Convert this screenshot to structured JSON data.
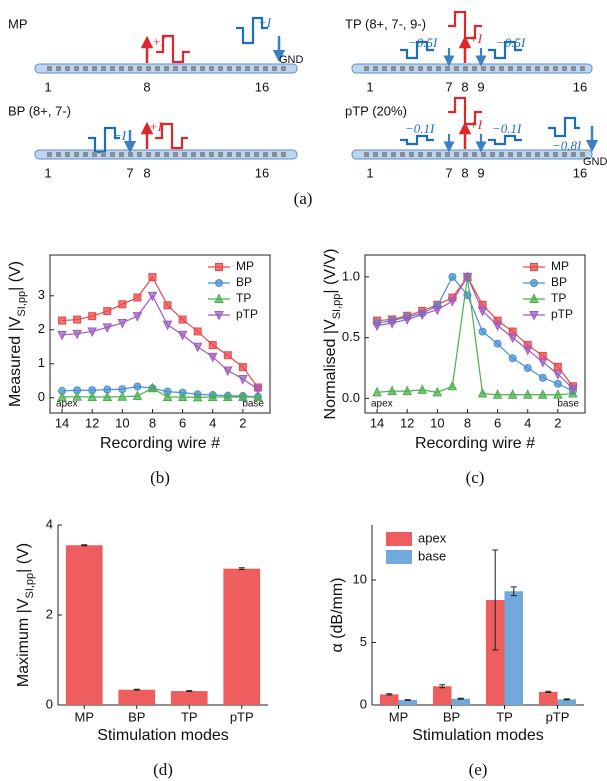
{
  "diagram": {
    "caption": "(a)",
    "panels": [
      {
        "title": "MP",
        "electrodes": [
          "1",
          "8",
          "16"
        ],
        "currents": [
          "+I",
          "−I"
        ],
        "ground": "GND"
      },
      {
        "title": "TP (8+, 7-, 9-)",
        "electrodes": [
          "1",
          "7",
          "8",
          "9",
          "16"
        ],
        "currents": [
          "−0.5I",
          "+I",
          "−0.5I"
        ]
      },
      {
        "title": "BP (8+, 7-)",
        "electrodes": [
          "1",
          "7",
          "8",
          "16"
        ],
        "currents": [
          "−I",
          "+I"
        ]
      },
      {
        "title": "pTP (20%)",
        "electrodes": [
          "1",
          "7",
          "8",
          "9",
          "16"
        ],
        "currents": [
          "−0.1I",
          "+I",
          "−0.1I",
          "−0.8I"
        ],
        "ground": "GND"
      }
    ]
  },
  "chart_data": [
    {
      "type": "line",
      "caption": "(b)",
      "xlabel": "Recording wire #",
      "ylabel": [
        "Measured |V",
        "SI,pp",
        "| (V)"
      ],
      "x": [
        14,
        13,
        12,
        11,
        10,
        9,
        8,
        7,
        6,
        5,
        4,
        3,
        2,
        1
      ],
      "xlim": [
        14.8,
        0.2
      ],
      "xticks": [
        14,
        12,
        10,
        8,
        6,
        4,
        2
      ],
      "ylim": [
        -0.45,
        4.2
      ],
      "yticks": [
        0,
        1,
        2,
        3
      ],
      "annotations": [
        "apex",
        "base"
      ],
      "legend": "upper right",
      "series": [
        {
          "name": "MP",
          "color": "#e8474a",
          "marker": "square",
          "values": [
            2.27,
            2.3,
            2.4,
            2.55,
            2.75,
            2.95,
            3.55,
            2.72,
            2.3,
            1.95,
            1.55,
            1.25,
            0.9,
            0.3
          ]
        },
        {
          "name": "BP",
          "color": "#4a90d0",
          "marker": "circle",
          "values": [
            0.2,
            0.22,
            0.22,
            0.24,
            0.25,
            0.33,
            0.28,
            0.18,
            0.15,
            0.1,
            0.08,
            0.06,
            0.05,
            0.03
          ]
        },
        {
          "name": "TP",
          "color": "#4caf50",
          "marker": "triangle-up",
          "values": [
            0.02,
            0.03,
            0.02,
            0.02,
            0.03,
            0.05,
            0.28,
            0.02,
            0.02,
            0.01,
            0.02,
            0.02,
            0.02,
            0.02
          ]
        },
        {
          "name": "pTP",
          "color": "#a05cc0",
          "marker": "triangle-down",
          "values": [
            1.85,
            1.88,
            1.95,
            2.07,
            2.2,
            2.4,
            3.0,
            2.15,
            1.85,
            1.5,
            1.2,
            0.8,
            0.55,
            0.25
          ]
        }
      ]
    },
    {
      "type": "line",
      "caption": "(c)",
      "xlabel": "Recording wire #",
      "ylabel": [
        "Normalised |V",
        "SI,pp",
        "| (V/V)"
      ],
      "x": [
        14,
        13,
        12,
        11,
        10,
        9,
        8,
        7,
        6,
        5,
        4,
        3,
        2,
        1
      ],
      "xlim": [
        14.8,
        0.2
      ],
      "xticks": [
        14,
        12,
        10,
        8,
        6,
        4,
        2
      ],
      "ylim": [
        -0.12,
        1.18
      ],
      "yticks": [
        {
          "value": 0,
          "label": "0.0"
        },
        0.5,
        {
          "value": 1,
          "label": "1.0"
        }
      ],
      "annotations": [
        "apex",
        "base"
      ],
      "legend": "upper right",
      "series": [
        {
          "name": "MP",
          "color": "#e8474a",
          "marker": "square",
          "values": [
            0.64,
            0.65,
            0.68,
            0.72,
            0.77,
            0.83,
            1.0,
            0.77,
            0.64,
            0.55,
            0.44,
            0.35,
            0.26,
            0.1
          ]
        },
        {
          "name": "BP",
          "color": "#4a90d0",
          "marker": "circle",
          "values": [
            0.62,
            0.64,
            0.67,
            0.7,
            0.76,
            1.0,
            0.85,
            0.55,
            0.45,
            0.33,
            0.25,
            0.17,
            0.12,
            0.06
          ]
        },
        {
          "name": "TP",
          "color": "#4caf50",
          "marker": "triangle-up",
          "values": [
            0.05,
            0.06,
            0.06,
            0.07,
            0.05,
            0.1,
            1.0,
            0.04,
            0.03,
            0.03,
            0.03,
            0.03,
            0.03,
            0.04
          ]
        },
        {
          "name": "pTP",
          "color": "#a05cc0",
          "marker": "triangle-down",
          "values": [
            0.6,
            0.62,
            0.65,
            0.69,
            0.73,
            0.8,
            1.0,
            0.72,
            0.6,
            0.5,
            0.4,
            0.3,
            0.2,
            0.08
          ]
        }
      ]
    },
    {
      "type": "bar",
      "caption": "(d)",
      "xlabel": "Stimulation modes",
      "ylabel": [
        "Maximum |V",
        "SI,pp",
        "| (V)"
      ],
      "categories": [
        "MP",
        "BP",
        "TP",
        "pTP"
      ],
      "values": [
        3.55,
        0.34,
        0.31,
        3.03
      ],
      "errors": [
        0.01,
        0.01,
        0.01,
        0.02
      ],
      "color": "#ef5e5e",
      "ylim": [
        0,
        4
      ],
      "yticks": [
        0,
        2,
        4
      ]
    },
    {
      "type": "bar",
      "caption": "(e)",
      "xlabel": "Stimulation modes",
      "ylabel": "α (dB/mm)",
      "categories": [
        "MP",
        "BP",
        "TP",
        "pTP"
      ],
      "ylim": [
        0,
        14.4
      ],
      "yticks": [
        0,
        5,
        10
      ],
      "legend": "upper left",
      "series": [
        {
          "name": "apex",
          "color": "#ef5e5e",
          "values": [
            0.85,
            1.5,
            8.4,
            1.05
          ],
          "errors": [
            0.05,
            0.12,
            4.0,
            0.05
          ]
        },
        {
          "name": "base",
          "color": "#72a9db",
          "values": [
            0.4,
            0.5,
            9.1,
            0.45
          ],
          "errors": [
            0.03,
            0.04,
            0.35,
            0.04
          ]
        }
      ]
    }
  ]
}
